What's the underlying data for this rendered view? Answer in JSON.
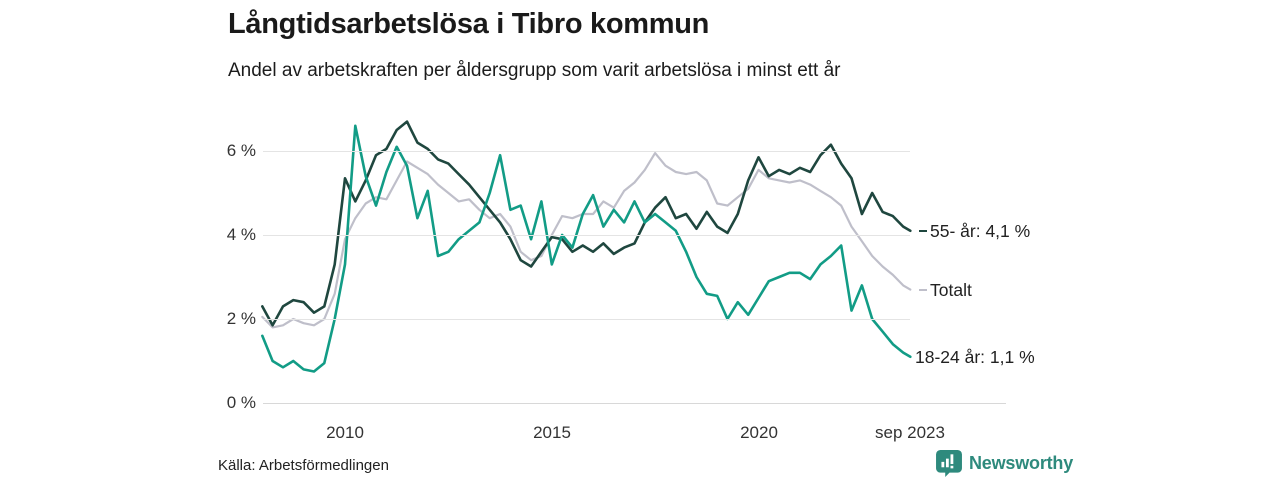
{
  "header": {
    "title": "Långtidsarbetslösa i Tibro kommun",
    "subtitle": "Andel av arbetskraften per åldersgrupp som varit arbetslösa i minst ett år"
  },
  "source": {
    "text": "Källa: Arbetsförmedlingen"
  },
  "branding": {
    "name": "Newsworthy",
    "color": "#2E8A7D"
  },
  "chart_data": {
    "type": "line",
    "title": "Långtidsarbetslösa i Tibro kommun",
    "subtitle": "Andel av arbetskraften per åldersgrupp som varit arbetslösa i minst ett år",
    "x_unit": "decimal_year",
    "xlim": [
      2008,
      2023.75
    ],
    "ylim": [
      0,
      6.9
    ],
    "grid": "horizontal",
    "legend_position": "right-end-labels",
    "x": [
      2008.0,
      2008.25,
      2008.5,
      2008.75,
      2009.0,
      2009.25,
      2009.5,
      2009.75,
      2010.0,
      2010.25,
      2010.5,
      2010.75,
      2011.0,
      2011.25,
      2011.5,
      2011.75,
      2012.0,
      2012.25,
      2012.5,
      2012.75,
      2013.0,
      2013.25,
      2013.5,
      2013.75,
      2014.0,
      2014.25,
      2014.5,
      2014.75,
      2015.0,
      2015.25,
      2015.5,
      2015.75,
      2016.0,
      2016.25,
      2016.5,
      2016.75,
      2017.0,
      2017.25,
      2017.5,
      2017.75,
      2018.0,
      2018.25,
      2018.5,
      2018.75,
      2019.0,
      2019.25,
      2019.5,
      2019.75,
      2020.0,
      2020.25,
      2020.5,
      2020.75,
      2021.0,
      2021.25,
      2021.5,
      2021.75,
      2022.0,
      2022.25,
      2022.5,
      2022.75,
      2023.0,
      2023.25,
      2023.5,
      2023.67
    ],
    "series": [
      {
        "name": "Totalt",
        "label": "Totalt",
        "end_value": 2.7,
        "color": "#BFBFCA",
        "stroke_width": 2.2,
        "tick": true,
        "values": [
          2.05,
          1.8,
          1.85,
          2.0,
          1.9,
          1.85,
          2.0,
          2.6,
          3.9,
          4.4,
          4.75,
          4.9,
          4.85,
          5.3,
          5.75,
          5.6,
          5.45,
          5.2,
          5.0,
          4.8,
          4.85,
          4.6,
          4.4,
          4.5,
          4.2,
          3.6,
          3.4,
          3.5,
          4.0,
          4.45,
          4.4,
          4.5,
          4.5,
          4.8,
          4.65,
          5.05,
          5.25,
          5.55,
          5.95,
          5.65,
          5.5,
          5.45,
          5.5,
          5.3,
          4.75,
          4.7,
          4.9,
          5.1,
          5.55,
          5.35,
          5.3,
          5.25,
          5.3,
          5.2,
          5.05,
          4.9,
          4.7,
          4.2,
          3.85,
          3.5,
          3.25,
          3.05,
          2.8,
          2.7
        ]
      },
      {
        "name": "55- år",
        "label": "55- år: 4,1 %",
        "end_value": 4.1,
        "color": "#1F473F",
        "stroke_width": 2.6,
        "tick": true,
        "values": [
          2.3,
          1.85,
          2.3,
          2.45,
          2.4,
          2.15,
          2.3,
          3.3,
          5.35,
          4.8,
          5.3,
          5.9,
          6.05,
          6.5,
          6.7,
          6.2,
          6.05,
          5.8,
          5.7,
          5.45,
          5.2,
          4.9,
          4.6,
          4.3,
          3.9,
          3.4,
          3.25,
          3.6,
          3.95,
          3.9,
          3.6,
          3.75,
          3.6,
          3.8,
          3.55,
          3.7,
          3.8,
          4.3,
          4.65,
          4.9,
          4.4,
          4.5,
          4.15,
          4.55,
          4.2,
          4.05,
          4.5,
          5.3,
          5.85,
          5.4,
          5.55,
          5.45,
          5.6,
          5.5,
          5.9,
          6.15,
          5.7,
          5.35,
          4.5,
          5.0,
          4.55,
          4.45,
          4.2,
          4.1
        ]
      },
      {
        "name": "18-24 år",
        "label": "18-24 år: 1,1 %",
        "end_value": 1.1,
        "color": "#129C86",
        "stroke_width": 2.6,
        "tick": false,
        "values": [
          1.6,
          1.0,
          0.85,
          1.0,
          0.8,
          0.75,
          0.95,
          2.0,
          3.3,
          6.6,
          5.4,
          4.7,
          5.5,
          6.1,
          5.65,
          4.4,
          5.05,
          3.5,
          3.6,
          3.9,
          4.1,
          4.3,
          5.0,
          5.9,
          4.6,
          4.7,
          3.9,
          4.8,
          3.3,
          4.0,
          3.7,
          4.5,
          4.95,
          4.2,
          4.6,
          4.3,
          4.8,
          4.3,
          4.5,
          4.3,
          4.1,
          3.6,
          3.0,
          2.6,
          2.55,
          2.0,
          2.4,
          2.1,
          2.5,
          2.9,
          3.0,
          3.1,
          3.1,
          2.95,
          3.3,
          3.5,
          3.75,
          2.2,
          2.8,
          2.0,
          1.7,
          1.4,
          1.2,
          1.1
        ]
      }
    ],
    "y_ticks": [
      {
        "value": 0,
        "label": "0 %"
      },
      {
        "value": 2,
        "label": "2 %"
      },
      {
        "value": 4,
        "label": "4 %"
      },
      {
        "value": 6,
        "label": "6 %"
      }
    ],
    "x_ticks": [
      {
        "value": 2010,
        "label": "2010"
      },
      {
        "value": 2015,
        "label": "2015"
      },
      {
        "value": 2020,
        "label": "2020"
      },
      {
        "value": 2023.67,
        "label": "sep 2023"
      }
    ]
  }
}
